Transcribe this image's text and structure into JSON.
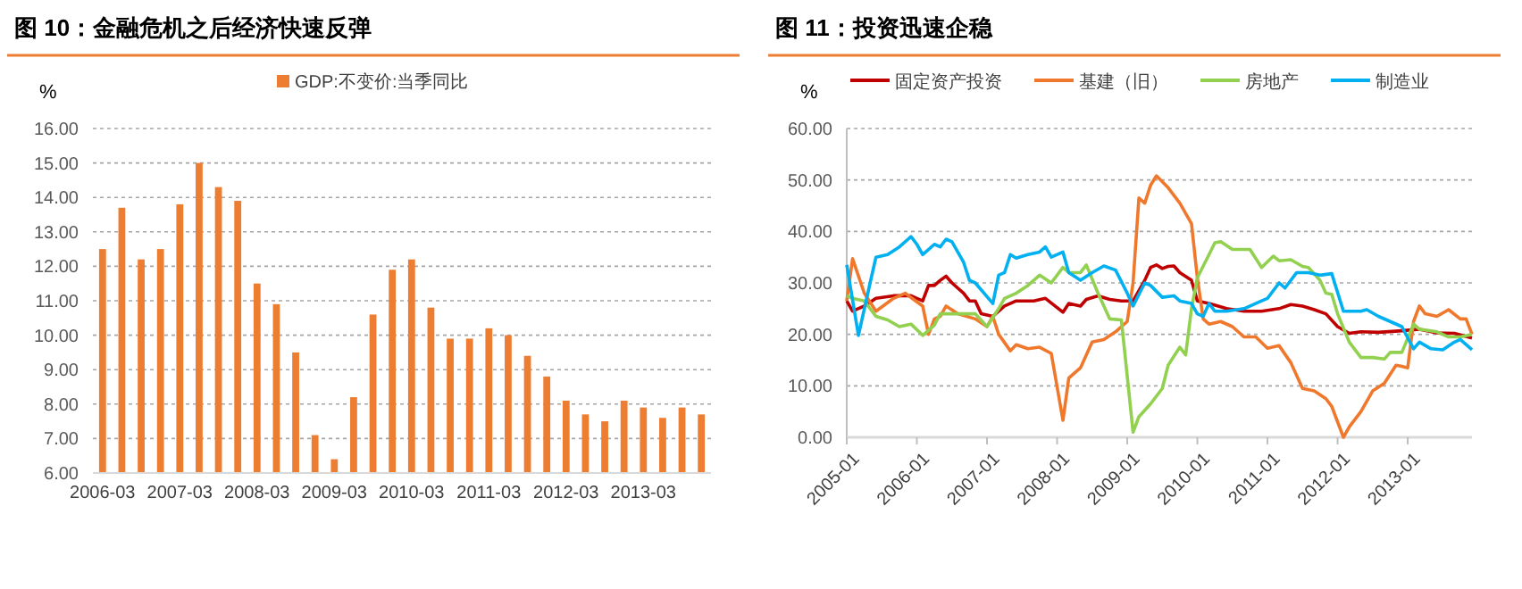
{
  "chart_data": [
    {
      "type": "bar",
      "title": "图 10：金融危机之后经济快速反弹",
      "ylabel": "%",
      "legend": "top",
      "grid": "y",
      "categories": [
        "2006-03",
        null,
        null,
        null,
        "2007-03",
        null,
        null,
        null,
        "2008-03",
        null,
        null,
        null,
        "2009-03",
        null,
        null,
        null,
        "2010-03",
        null,
        null,
        null,
        "2011-03",
        null,
        null,
        null,
        "2012-03",
        null,
        null,
        null,
        "2013-03",
        null,
        null,
        null
      ],
      "series": [
        {
          "name": "GDP:不变价:当季同比",
          "color": "#ed7d31",
          "values": [
            12.5,
            13.7,
            12.2,
            12.5,
            13.8,
            15.0,
            14.3,
            13.9,
            11.5,
            10.9,
            9.5,
            7.1,
            6.4,
            8.2,
            10.6,
            11.9,
            12.2,
            10.8,
            9.9,
            9.9,
            10.2,
            10.0,
            9.4,
            8.8,
            8.1,
            7.7,
            7.5,
            8.1,
            7.9,
            7.6,
            7.9,
            7.7
          ]
        }
      ],
      "ylim": [
        6,
        16
      ],
      "yticks": [
        {
          "value": 6,
          "label": "6.00"
        },
        {
          "value": 7,
          "label": "7.00"
        },
        {
          "value": 8,
          "label": "8.00"
        },
        {
          "value": 9,
          "label": "9.00"
        },
        {
          "value": 10,
          "label": "10.00"
        },
        {
          "value": 11,
          "label": "11.00"
        },
        {
          "value": 12,
          "label": "12.00"
        },
        {
          "value": 13,
          "label": "13.00"
        },
        {
          "value": 14,
          "label": "14.00"
        },
        {
          "value": 15,
          "label": "15.00"
        },
        {
          "value": 16,
          "label": "16.00"
        }
      ]
    },
    {
      "type": "line",
      "title": "图 11：投资迅速企稳",
      "ylabel": "%",
      "legend": "top",
      "grid": "y",
      "xlim": [
        "2005-01",
        "2013-12"
      ],
      "xticks": [
        "2005-01",
        "2006-01",
        "2007-01",
        "2008-01",
        "2009-01",
        "2010-01",
        "2011-01",
        "2012-01",
        "2013-01"
      ],
      "ylim": [
        0,
        60
      ],
      "yticks": [
        {
          "value": 0,
          "label": "0.00"
        },
        {
          "value": 10,
          "label": "10.00"
        },
        {
          "value": 20,
          "label": "20.00"
        },
        {
          "value": 30,
          "label": "30.00"
        },
        {
          "value": 40,
          "label": "40.00"
        },
        {
          "value": 50,
          "label": "50.00"
        },
        {
          "value": 60,
          "label": "60.00"
        }
      ],
      "series": [
        {
          "name": "固定资产投资",
          "color": "#c00000",
          "x": [
            "2005-01",
            "2005-02",
            "2005-04",
            "2005-06",
            "2005-09",
            "2005-12",
            "2006-01",
            "2006-02",
            "2006-03",
            "2006-04",
            "2006-05",
            "2006-06",
            "2006-07",
            "2006-09",
            "2006-10",
            "2006-11",
            "2006-12",
            "2007-02",
            "2007-04",
            "2007-06",
            "2007-09",
            "2007-11",
            "2008-02",
            "2008-03",
            "2008-05",
            "2008-06",
            "2008-08",
            "2008-10",
            "2008-12",
            "2009-02",
            "2009-04",
            "2009-05",
            "2009-06",
            "2009-07",
            "2009-08",
            "2009-09",
            "2009-10",
            "2009-12",
            "2010-01",
            "2010-03",
            "2010-06",
            "2010-09",
            "2010-12",
            "2011-03",
            "2011-05",
            "2011-07",
            "2011-09",
            "2011-11",
            "2012-01",
            "2012-03",
            "2012-05",
            "2012-08",
            "2012-12",
            "2013-03",
            "2013-06",
            "2013-09",
            "2013-12"
          ],
          "values": [
            26.5,
            24.5,
            25.5,
            27,
            27.5,
            27.5,
            27,
            26.5,
            29.5,
            29.5,
            30.5,
            31.3,
            30,
            28,
            26.5,
            26.5,
            24,
            23.5,
            25.5,
            26.5,
            26.5,
            27,
            24.3,
            26,
            25.5,
            26.8,
            27.5,
            26.8,
            26.5,
            26.5,
            30.5,
            33,
            33.5,
            32.8,
            33.2,
            33.3,
            32,
            30.5,
            26.5,
            26,
            25,
            24.5,
            24.5,
            25,
            25.8,
            25.5,
            24.8,
            24,
            21.5,
            20.2,
            20.5,
            20.4,
            20.7,
            21,
            20.3,
            20.2,
            19.3
          ]
        },
        {
          "name": "基建（旧）",
          "color": "#f0782d",
          "x": [
            "2005-01",
            "2005-02",
            "2005-04",
            "2005-06",
            "2005-09",
            "2005-11",
            "2006-02",
            "2006-03",
            "2006-04",
            "2006-05",
            "2006-06",
            "2006-08",
            "2006-11",
            "2007-01",
            "2007-02",
            "2007-03",
            "2007-05",
            "2007-06",
            "2007-08",
            "2007-10",
            "2007-12",
            "2008-02",
            "2008-03",
            "2008-05",
            "2008-07",
            "2008-09",
            "2008-11",
            "2009-01",
            "2009-02",
            "2009-03",
            "2009-04",
            "2009-05",
            "2009-06",
            "2009-08",
            "2009-10",
            "2009-12",
            "2010-01",
            "2010-02",
            "2010-03",
            "2010-05",
            "2010-07",
            "2010-09",
            "2010-11",
            "2011-01",
            "2011-03",
            "2011-05",
            "2011-07",
            "2011-09",
            "2011-11",
            "2011-12",
            "2012-02",
            "2012-03",
            "2012-05",
            "2012-07",
            "2012-09",
            "2012-11",
            "2012-12",
            "2013-01",
            "2013-02",
            "2013-03",
            "2013-04",
            "2013-06",
            "2013-08",
            "2013-10",
            "2013-11",
            "2013-12"
          ],
          "values": [
            26.5,
            34.7,
            28,
            24.5,
            27,
            28,
            25.5,
            20,
            23,
            23.5,
            25.5,
            24,
            23,
            21.5,
            23.5,
            20,
            16.8,
            18,
            17.2,
            17.5,
            16.3,
            3.3,
            11.5,
            13.5,
            18.5,
            19,
            20.5,
            22.5,
            30,
            46.5,
            45.5,
            49,
            50.8,
            48.5,
            45.5,
            41.5,
            31,
            23,
            22,
            22.5,
            21.5,
            19.5,
            19.5,
            17.3,
            17.8,
            14.5,
            9.5,
            9,
            7.5,
            6,
            0,
            2,
            5,
            9,
            10.5,
            14,
            13.8,
            13.5,
            22.5,
            25.5,
            24,
            23.5,
            24.8,
            23,
            23,
            20
          ]
        },
        {
          "name": "房地产",
          "color": "#92d050",
          "x": [
            "2005-01",
            "2005-02",
            "2005-04",
            "2005-06",
            "2005-08",
            "2005-10",
            "2005-12",
            "2006-02",
            "2006-04",
            "2006-05",
            "2006-07",
            "2006-10",
            "2006-11",
            "2007-01",
            "2007-03",
            "2007-04",
            "2007-06",
            "2007-08",
            "2007-10",
            "2007-12",
            "2008-02",
            "2008-03",
            "2008-05",
            "2008-06",
            "2008-08",
            "2008-10",
            "2008-12",
            "2009-02",
            "2009-03",
            "2009-05",
            "2009-07",
            "2009-08",
            "2009-10",
            "2009-11",
            "2009-12",
            "2010-01",
            "2010-03",
            "2010-04",
            "2010-05",
            "2010-07",
            "2010-10",
            "2010-12",
            "2011-02",
            "2011-03",
            "2011-05",
            "2011-07",
            "2011-08",
            "2011-10",
            "2011-11",
            "2011-12",
            "2012-01",
            "2012-03",
            "2012-05",
            "2012-07",
            "2012-09",
            "2012-10",
            "2012-12",
            "2013-02",
            "2013-03",
            "2013-06",
            "2013-08",
            "2013-10",
            "2013-12"
          ],
          "values": [
            27.5,
            27,
            26.5,
            23.5,
            22.8,
            21.5,
            22,
            19.8,
            21.8,
            24,
            24,
            24,
            24,
            21.5,
            25,
            27,
            28,
            29.5,
            31.5,
            30,
            33,
            32,
            32,
            33.5,
            28,
            23,
            22.8,
            1,
            4,
            6.5,
            9.5,
            14,
            17.5,
            16,
            25,
            31,
            35.5,
            37.8,
            38,
            36.5,
            36.5,
            33,
            35.2,
            34.3,
            34.5,
            33.2,
            33,
            30.5,
            28,
            27.8,
            24,
            18.5,
            15.5,
            15.5,
            15.2,
            16.5,
            16.5,
            22,
            21,
            20.5,
            19.5,
            19.5,
            20
          ]
        },
        {
          "name": "制造业",
          "color": "#00b0f0",
          "x": [
            "2005-01",
            "2005-03",
            "2005-05",
            "2005-06",
            "2005-08",
            "2005-10",
            "2005-12",
            "2006-01",
            "2006-02",
            "2006-04",
            "2006-05",
            "2006-06",
            "2006-07",
            "2006-09",
            "2006-10",
            "2006-11",
            "2007-02",
            "2007-03",
            "2007-04",
            "2007-05",
            "2007-06",
            "2007-08",
            "2007-10",
            "2007-11",
            "2007-12",
            "2008-02",
            "2008-03",
            "2008-05",
            "2008-07",
            "2008-09",
            "2008-11",
            "2009-01",
            "2009-02",
            "2009-04",
            "2009-05",
            "2009-07",
            "2009-09",
            "2009-10",
            "2009-12",
            "2010-01",
            "2010-02",
            "2010-03",
            "2010-04",
            "2010-06",
            "2010-09",
            "2010-12",
            "2011-01",
            "2011-03",
            "2011-04",
            "2011-06",
            "2011-08",
            "2011-10",
            "2011-12",
            "2012-02",
            "2012-05",
            "2012-06",
            "2012-08",
            "2012-10",
            "2012-12",
            "2013-02",
            "2013-03",
            "2013-05",
            "2013-07",
            "2013-09",
            "2013-10",
            "2013-12"
          ],
          "values": [
            33.5,
            19.8,
            30,
            35,
            35.5,
            37,
            39,
            37.5,
            35.5,
            37.5,
            37,
            38.5,
            38,
            34,
            30.5,
            30,
            26,
            31.5,
            32,
            35.5,
            34.8,
            35.5,
            36,
            37,
            35,
            36,
            32,
            30.5,
            32,
            33.3,
            32.5,
            28,
            25.5,
            30,
            29.5,
            27.2,
            27.5,
            26.5,
            26,
            24,
            23.5,
            26,
            24.5,
            24.5,
            25,
            26.5,
            27,
            30,
            29,
            32,
            32,
            31.5,
            31.8,
            24.5,
            24.5,
            24.8,
            23.5,
            22.5,
            21.5,
            17.2,
            18.5,
            17.2,
            17,
            18.5,
            19,
            17
          ]
        }
      ]
    }
  ]
}
